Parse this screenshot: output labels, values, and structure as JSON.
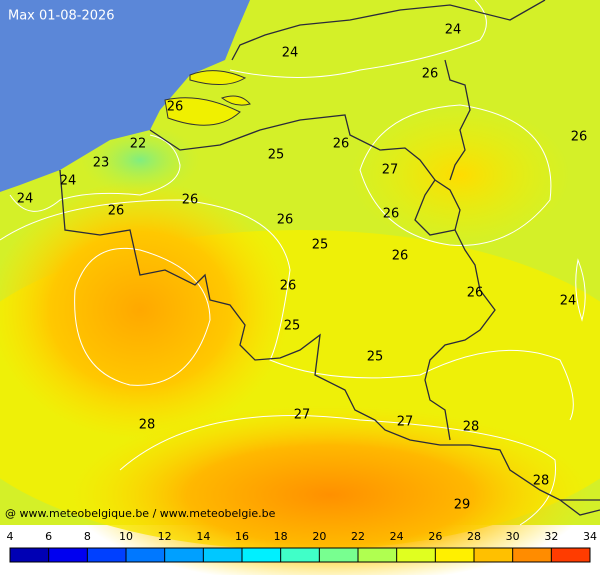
{
  "header": {
    "title": "Max 01-08-2026",
    "credit": "@ www.meteobelgique.be / www.meteobelgie.be"
  },
  "map_labels": [
    24,
    24,
    26,
    26,
    22,
    23,
    24,
    24,
    26,
    26,
    25,
    26,
    27,
    26,
    26,
    25,
    26,
    26,
    26,
    24,
    25,
    25,
    28,
    27,
    27,
    28,
    28,
    29,
    26
  ],
  "legend": {
    "ticks": [
      4,
      6,
      8,
      10,
      12,
      14,
      16,
      18,
      20,
      22,
      24,
      26,
      28,
      30,
      32,
      34
    ],
    "colors": [
      "#0000b4",
      "#0000f0",
      "#0040ff",
      "#0078ff",
      "#00a0ff",
      "#00c8ff",
      "#00f0ff",
      "#40ffc8",
      "#78ff90",
      "#b0ff50",
      "#e0ff20",
      "#fff000",
      "#ffc000",
      "#ff8c00",
      "#ff3c00"
    ]
  }
}
